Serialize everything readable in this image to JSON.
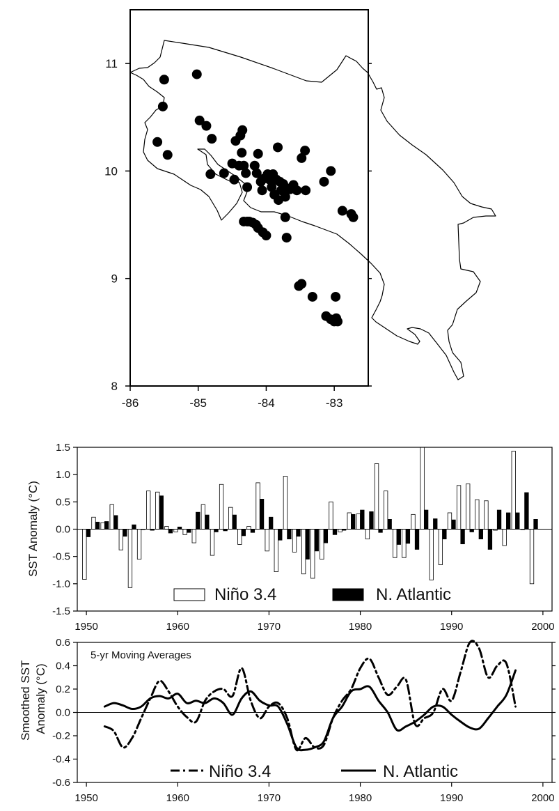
{
  "chart_data": [
    {
      "type": "scatter",
      "xlim": [
        -86,
        -82.5
      ],
      "ylim": [
        8,
        11.5
      ],
      "x_ticks": [
        -86,
        -85,
        -84,
        -83
      ],
      "y_ticks": [
        8,
        9,
        10,
        11
      ],
      "x_tick_labels": [
        "-86",
        "-85",
        "-84",
        "-83"
      ],
      "y_tick_labels": [
        "8",
        "9",
        "10",
        "11"
      ],
      "points": [
        [
          -85.5,
          10.85
        ],
        [
          -85.02,
          10.9
        ],
        [
          -85.52,
          10.6
        ],
        [
          -85.6,
          10.27
        ],
        [
          -85.45,
          10.15
        ],
        [
          -84.88,
          10.42
        ],
        [
          -84.98,
          10.47
        ],
        [
          -84.8,
          10.3
        ],
        [
          -84.82,
          9.97
        ],
        [
          -84.62,
          9.98
        ],
        [
          -84.5,
          10.07
        ],
        [
          -84.47,
          9.92
        ],
        [
          -84.45,
          10.28
        ],
        [
          -84.38,
          10.33
        ],
        [
          -84.35,
          10.38
        ],
        [
          -84.4,
          10.05
        ],
        [
          -84.36,
          10.17
        ],
        [
          -84.33,
          10.05
        ],
        [
          -84.3,
          9.98
        ],
        [
          -84.28,
          9.85
        ],
        [
          -84.17,
          10.05
        ],
        [
          -84.14,
          9.98
        ],
        [
          -84.12,
          10.16
        ],
        [
          -84.08,
          9.9
        ],
        [
          -84.06,
          9.82
        ],
        [
          -84.03,
          9.93
        ],
        [
          -83.98,
          9.97
        ],
        [
          -83.95,
          9.92
        ],
        [
          -83.92,
          9.85
        ],
        [
          -83.9,
          9.97
        ],
        [
          -83.88,
          9.78
        ],
        [
          -83.85,
          9.92
        ],
        [
          -83.82,
          9.73
        ],
        [
          -83.8,
          9.9
        ],
        [
          -83.78,
          9.82
        ],
        [
          -83.75,
          9.88
        ],
        [
          -83.72,
          9.76
        ],
        [
          -83.7,
          9.84
        ],
        [
          -83.65,
          9.83
        ],
        [
          -83.6,
          9.87
        ],
        [
          -83.55,
          9.82
        ],
        [
          -83.72,
          9.57
        ],
        [
          -83.7,
          9.38
        ],
        [
          -83.83,
          10.22
        ],
        [
          -83.48,
          10.12
        ],
        [
          -83.43,
          10.19
        ],
        [
          -83.42,
          9.82
        ],
        [
          -83.15,
          9.9
        ],
        [
          -83.05,
          10.0
        ],
        [
          -82.88,
          9.63
        ],
        [
          -82.75,
          9.6
        ],
        [
          -82.72,
          9.57
        ],
        [
          -84.33,
          9.53
        ],
        [
          -84.28,
          9.53
        ],
        [
          -84.25,
          9.53
        ],
        [
          -84.2,
          9.52
        ],
        [
          -84.15,
          9.5
        ],
        [
          -84.12,
          9.47
        ],
        [
          -84.05,
          9.43
        ],
        [
          -84.0,
          9.4
        ],
        [
          -83.52,
          8.93
        ],
        [
          -83.48,
          8.95
        ],
        [
          -83.32,
          8.83
        ],
        [
          -83.12,
          8.65
        ],
        [
          -83.05,
          8.62
        ],
        [
          -83.0,
          8.6
        ],
        [
          -82.97,
          8.63
        ],
        [
          -82.95,
          8.6
        ],
        [
          -82.98,
          8.83
        ]
      ]
    },
    {
      "type": "bar",
      "ylabel": "SST Anomaly (°C)",
      "xlim": [
        1949,
        2001
      ],
      "ylim": [
        -1.5,
        1.5
      ],
      "x_ticks": [
        1950,
        1960,
        1970,
        1980,
        1990,
        2000
      ],
      "y_ticks": [
        -1.5,
        -1.0,
        -0.5,
        0.0,
        0.5,
        1.0,
        1.5
      ],
      "x_tick_labels": [
        "1950",
        "1960",
        "1970",
        "1980",
        "1990",
        "2000"
      ],
      "y_tick_labels": [
        "-1.5",
        "-1.0",
        "-0.5",
        "0.0",
        "0.5",
        "1.0",
        "1.5"
      ],
      "years": [
        1950,
        1951,
        1952,
        1953,
        1954,
        1955,
        1956,
        1957,
        1958,
        1959,
        1960,
        1961,
        1962,
        1963,
        1964,
        1965,
        1966,
        1967,
        1968,
        1969,
        1970,
        1971,
        1972,
        1973,
        1974,
        1975,
        1976,
        1977,
        1978,
        1979,
        1980,
        1981,
        1982,
        1983,
        1984,
        1985,
        1986,
        1987,
        1988,
        1989,
        1990,
        1991,
        1992,
        1993,
        1994,
        1995,
        1996,
        1997,
        1998,
        1999
      ],
      "legend": [
        "Niño 3.4",
        "N. Atlantic"
      ],
      "series": [
        {
          "name": "Niño 3.4",
          "fill": "#ffffff",
          "values": [
            -0.92,
            0.22,
            0.12,
            0.45,
            -0.38,
            -1.07,
            -0.55,
            0.7,
            0.68,
            0.05,
            -0.05,
            -0.1,
            -0.25,
            0.45,
            -0.48,
            0.82,
            0.4,
            -0.28,
            0.05,
            0.85,
            -0.4,
            -0.78,
            0.97,
            -0.42,
            -0.82,
            -0.9,
            -0.55,
            0.5,
            -0.05,
            0.3,
            0.28,
            -0.18,
            1.2,
            0.7,
            -0.52,
            -0.52,
            0.27,
            1.5,
            -0.93,
            -0.65,
            0.3,
            0.8,
            0.83,
            0.54,
            0.52,
            -0.02,
            -0.3,
            1.43,
            0.0,
            -1.0
          ]
        },
        {
          "name": "N. Atlantic",
          "fill": "#000000",
          "values": [
            -0.14,
            0.13,
            0.14,
            0.25,
            -0.13,
            0.08,
            0.0,
            -0.02,
            0.61,
            -0.07,
            0.04,
            -0.06,
            0.31,
            0.26,
            -0.05,
            -0.03,
            0.26,
            -0.12,
            -0.06,
            0.55,
            0.22,
            -0.2,
            -0.18,
            -0.13,
            -0.55,
            -0.4,
            -0.25,
            -0.1,
            -0.02,
            0.27,
            0.35,
            0.32,
            -0.06,
            0.18,
            -0.28,
            -0.26,
            -0.37,
            0.35,
            0.19,
            -0.18,
            0.17,
            -0.27,
            -0.05,
            -0.18,
            -0.37,
            0.35,
            0.3,
            0.3,
            0.67,
            0.18
          ]
        }
      ]
    },
    {
      "type": "line",
      "title": "5-yr Moving Averages",
      "ylabel": "Smoothed SST Anomaly (°C)",
      "xlim": [
        1949,
        2001
      ],
      "ylim": [
        -0.6,
        0.6
      ],
      "x_ticks": [
        1950,
        1960,
        1970,
        1980,
        1990,
        2000
      ],
      "y_ticks": [
        -0.6,
        -0.4,
        -0.2,
        0.0,
        0.2,
        0.4,
        0.6
      ],
      "x_tick_labels": [
        "1950",
        "1960",
        "1970",
        "1980",
        "1990",
        "2000"
      ],
      "y_tick_labels": [
        "-0.6",
        "-0.4",
        "-0.2",
        "0.0",
        "0.2",
        "0.4",
        "0.6"
      ],
      "legend": [
        "Niño 3.4",
        "N. Atlantic"
      ],
      "series": [
        {
          "name": "Niño 3.4",
          "style": "dash-dot",
          "x": [
            1952,
            1953,
            1954,
            1955,
            1956,
            1957,
            1958,
            1959,
            1960,
            1961,
            1962,
            1963,
            1964,
            1965,
            1966,
            1967,
            1968,
            1969,
            1970,
            1971,
            1972,
            1973,
            1974,
            1975,
            1976,
            1977,
            1978,
            1979,
            1980,
            1981,
            1982,
            1983,
            1984,
            1985,
            1986,
            1987,
            1988,
            1989,
            1990,
            1991,
            1992,
            1993,
            1994,
            1995,
            1996,
            1997
          ],
          "values": [
            -0.12,
            -0.16,
            -0.3,
            -0.22,
            -0.05,
            0.12,
            0.27,
            0.18,
            0.05,
            -0.04,
            -0.08,
            0.1,
            0.18,
            0.2,
            0.14,
            0.38,
            0.1,
            -0.05,
            0.05,
            0.08,
            -0.05,
            -0.32,
            -0.22,
            -0.3,
            -0.28,
            -0.05,
            0.1,
            0.2,
            0.38,
            0.46,
            0.3,
            0.15,
            0.22,
            0.28,
            -0.1,
            -0.05,
            0.0,
            0.2,
            0.1,
            0.35,
            0.6,
            0.55,
            0.3,
            0.4,
            0.42,
            0.05
          ]
        },
        {
          "name": "N. Atlantic",
          "style": "solid",
          "x": [
            1952,
            1953,
            1954,
            1955,
            1956,
            1957,
            1958,
            1959,
            1960,
            1961,
            1962,
            1963,
            1964,
            1965,
            1966,
            1967,
            1968,
            1969,
            1970,
            1971,
            1972,
            1973,
            1974,
            1975,
            1976,
            1977,
            1978,
            1979,
            1980,
            1981,
            1982,
            1983,
            1984,
            1985,
            1986,
            1987,
            1988,
            1989,
            1990,
            1991,
            1992,
            1993,
            1994,
            1995,
            1996,
            1997
          ],
          "values": [
            0.05,
            0.08,
            0.06,
            0.03,
            0.05,
            0.12,
            0.14,
            0.12,
            0.16,
            0.08,
            0.1,
            0.08,
            0.12,
            0.08,
            -0.02,
            0.12,
            0.18,
            0.1,
            0.06,
            0.05,
            -0.1,
            -0.3,
            -0.32,
            -0.3,
            -0.25,
            -0.05,
            0.05,
            0.18,
            0.2,
            0.22,
            0.1,
            0.0,
            -0.15,
            -0.12,
            -0.08,
            -0.02,
            0.05,
            0.05,
            -0.02,
            -0.08,
            -0.13,
            -0.14,
            -0.05,
            0.05,
            0.15,
            0.36
          ]
        }
      ]
    }
  ]
}
